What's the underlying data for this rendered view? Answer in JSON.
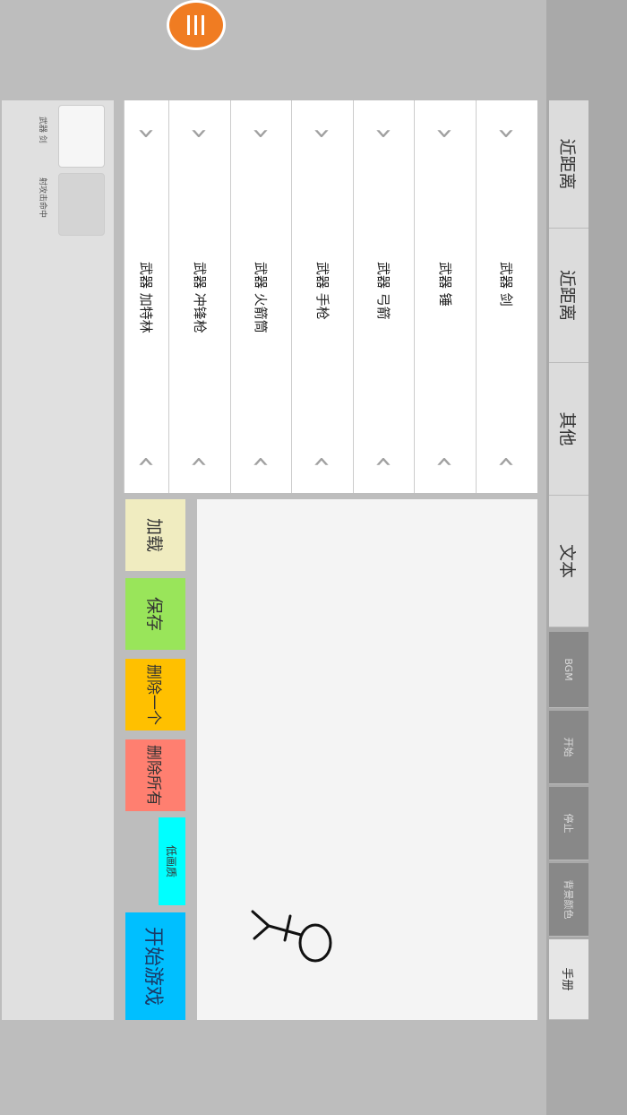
{
  "tabs": [
    {
      "label": "近距离",
      "style": "normal"
    },
    {
      "label": "近距离",
      "style": "normal"
    },
    {
      "label": "其他",
      "style": "normal"
    },
    {
      "label": "文本",
      "style": "normal"
    },
    {
      "label": "BGM",
      "style": "dark"
    },
    {
      "label": "开始",
      "style": "dark"
    },
    {
      "label": "停止",
      "style": "dark"
    },
    {
      "label": "背景颜色",
      "style": "dark"
    },
    {
      "label": "手册",
      "style": "light"
    }
  ],
  "weapons": [
    "武器 剑",
    "武器 锤",
    "武器 弓箭",
    "武器 手枪",
    "武器 火箭筒",
    "武器 冲锋枪",
    "武器 加特林"
  ],
  "icons": {
    "prev": "chevron-right-icon",
    "next": "chevron-left-icon",
    "menu": "menu-icon"
  },
  "buttons": [
    {
      "label": "加载",
      "color": "#f0ecc0"
    },
    {
      "label": "保存",
      "color": "#99e55a"
    },
    {
      "label": "删除一个",
      "color": "#ffc000"
    },
    {
      "label": "删除所有",
      "color": "#ff7f70"
    }
  ],
  "low_quality": {
    "label": "低画质",
    "color": "#00ffff"
  },
  "start_game": {
    "label": "开始游戏",
    "color": "#00bfff"
  },
  "slots": [
    {
      "label": "武器 剑"
    },
    {
      "label": "射攻击命中"
    }
  ],
  "accent": "#f07c22"
}
